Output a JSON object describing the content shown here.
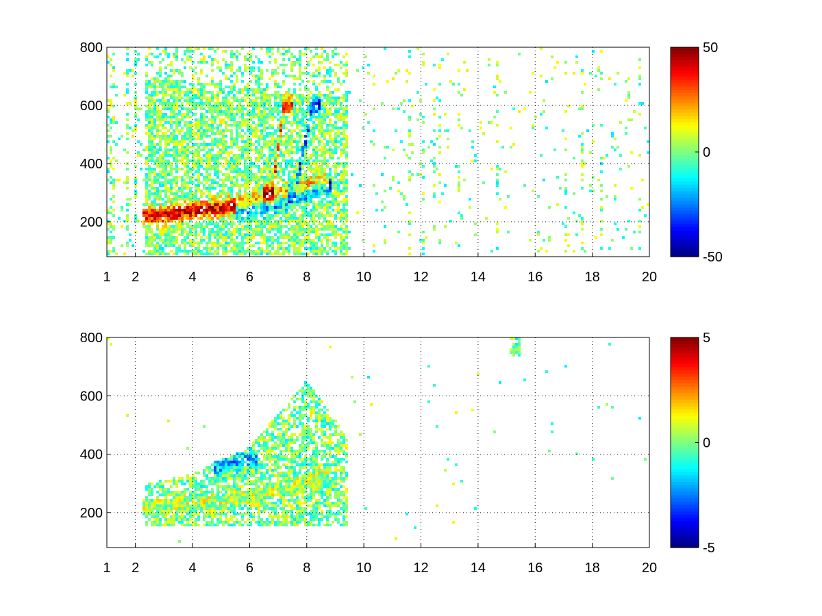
{
  "chart_data": [
    {
      "type": "heatmap",
      "title": "",
      "xlabel": "",
      "ylabel": "",
      "xlim": [
        1,
        20
      ],
      "ylim": [
        80,
        800
      ],
      "x_ticks": [
        "1",
        "2",
        "4",
        "6",
        "8",
        "10",
        "12",
        "14",
        "16",
        "18",
        "20"
      ],
      "x_tick_values": [
        1,
        2,
        4,
        6,
        8,
        10,
        12,
        14,
        16,
        18,
        20
      ],
      "y_ticks": [
        "200",
        "400",
        "600",
        "800"
      ],
      "y_tick_values": [
        200,
        400,
        600,
        800
      ],
      "grid": true,
      "colormap": "jet",
      "colorbar": {
        "min": -50,
        "max": 50,
        "ticks": [
          "50",
          "0",
          "-50"
        ],
        "tick_values": [
          50,
          0,
          -50
        ]
      },
      "ridges": [
        {
          "x": [
            2.5,
            3,
            4,
            5,
            5.8,
            6.5,
            7.2,
            7.8,
            8.5
          ],
          "y": [
            215,
            218,
            235,
            245,
            255,
            270,
            285,
            305,
            330
          ],
          "value": 40
        },
        {
          "x": [
            5.8,
            6.5,
            7.2,
            7.8,
            8.6
          ],
          "y": [
            240,
            250,
            270,
            290,
            320
          ],
          "value": -40
        },
        {
          "x": [
            6.8,
            7.0,
            7.2
          ],
          "y": [
            300,
            450,
            600
          ],
          "value": 35
        },
        {
          "x": [
            7.6,
            7.9,
            8.2
          ],
          "y": [
            300,
            450,
            600
          ],
          "value": -30
        }
      ],
      "noise_amplitude": 15
    },
    {
      "type": "heatmap",
      "title": "",
      "xlabel": "",
      "ylabel": "",
      "xlim": [
        1,
        20
      ],
      "ylim": [
        80,
        800
      ],
      "x_ticks": [
        "1",
        "2",
        "4",
        "6",
        "8",
        "10",
        "12",
        "14",
        "16",
        "18",
        "20"
      ],
      "x_tick_values": [
        1,
        2,
        4,
        6,
        8,
        10,
        12,
        14,
        16,
        18,
        20
      ],
      "y_ticks": [
        "200",
        "400",
        "600",
        "800"
      ],
      "y_tick_values": [
        200,
        400,
        600,
        800
      ],
      "grid": true,
      "colormap": "jet",
      "colorbar": {
        "min": -5,
        "max": 5,
        "ticks": [
          "5",
          "0",
          "-5"
        ],
        "tick_values": [
          5,
          0,
          -5
        ]
      },
      "ridges": [
        {
          "x": [
            2.5,
            3.5,
            4.5,
            5.5,
            6.5,
            7.5,
            8.5
          ],
          "y": [
            215,
            220,
            230,
            240,
            260,
            290,
            320
          ],
          "value": 0.5
        },
        {
          "x": [
            5.0,
            5.6,
            6.0
          ],
          "y": [
            350,
            370,
            380
          ],
          "value": -2
        }
      ],
      "noise_amplitude": 1.5
    }
  ]
}
